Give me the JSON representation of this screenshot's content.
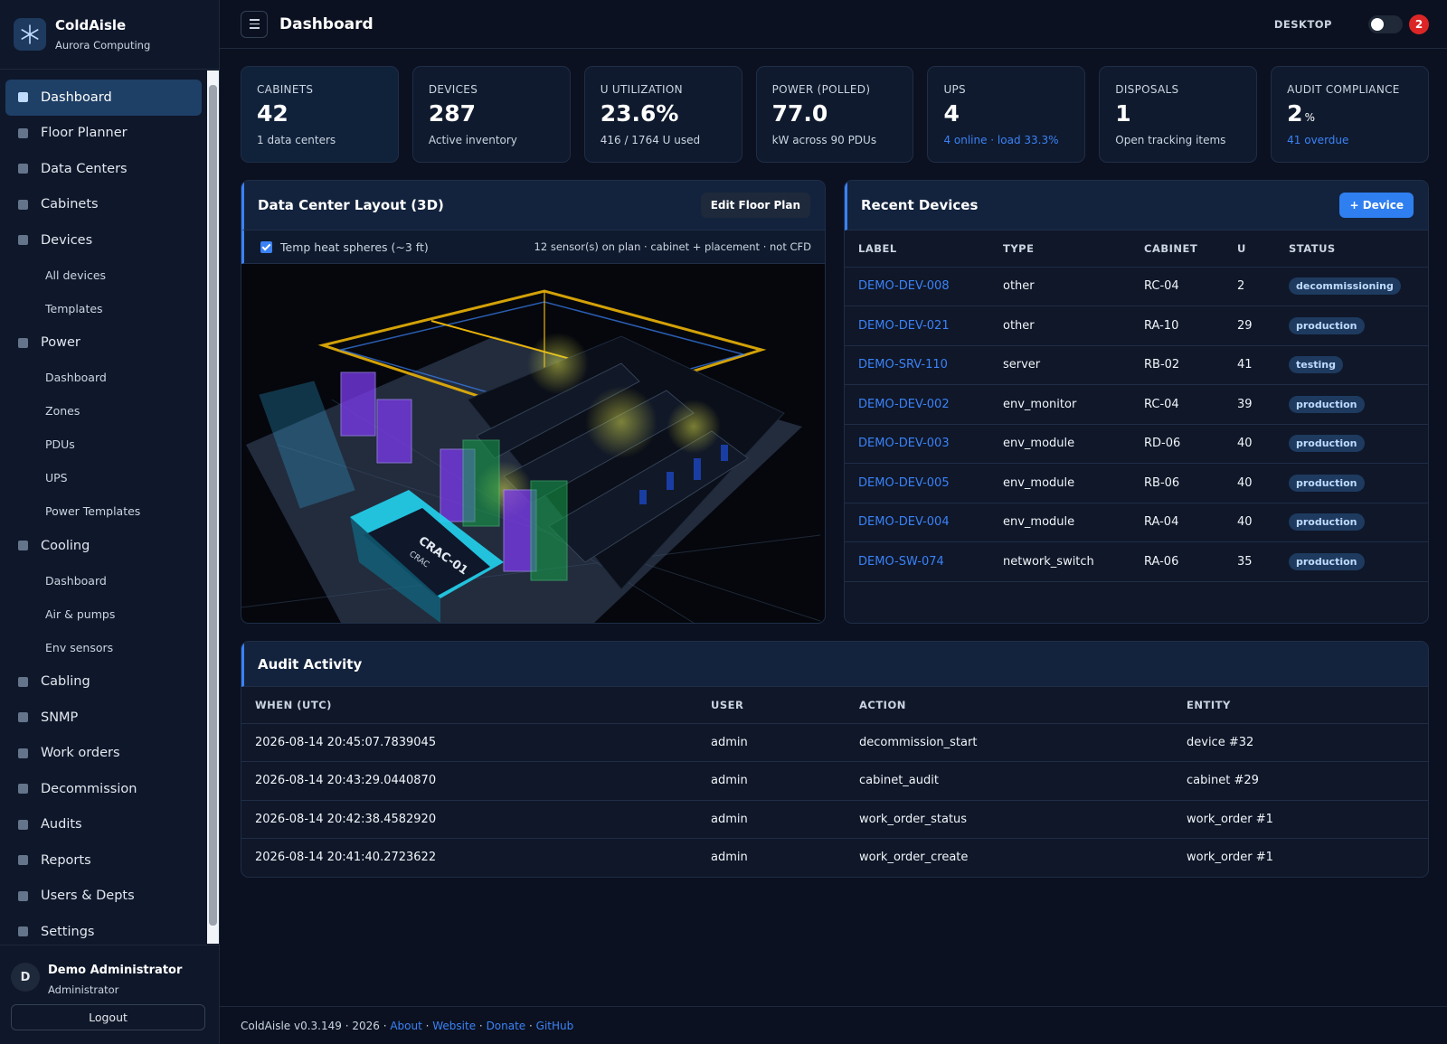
{
  "brand": {
    "name": "ColdAisle",
    "org": "Aurora Computing"
  },
  "nav": [
    {
      "label": "Dashboard",
      "active": true
    },
    {
      "label": "Floor Planner"
    },
    {
      "label": "Data Centers"
    },
    {
      "label": "Cabinets"
    },
    {
      "label": "Devices",
      "children": [
        "All devices",
        "Templates"
      ]
    },
    {
      "label": "Power",
      "children": [
        "Dashboard",
        "Zones",
        "PDUs",
        "UPS",
        "Power Templates"
      ]
    },
    {
      "label": "Cooling",
      "children": [
        "Dashboard",
        "Air & pumps",
        "Env sensors"
      ]
    },
    {
      "label": "Cabling"
    },
    {
      "label": "SNMP"
    },
    {
      "label": "Work orders"
    },
    {
      "label": "Decommission"
    },
    {
      "label": "Audits"
    },
    {
      "label": "Reports"
    },
    {
      "label": "Users & Depts"
    },
    {
      "label": "Settings"
    }
  ],
  "user": {
    "initial": "D",
    "name": "Demo Administrator",
    "role": "Administrator",
    "logout": "Logout"
  },
  "header": {
    "title": "Dashboard",
    "mode": "DESKTOP",
    "notifications": "2"
  },
  "stats": [
    {
      "label": "CABINETS",
      "value": "42",
      "sub": "1 data centers"
    },
    {
      "label": "DEVICES",
      "value": "287",
      "sub": "Active inventory"
    },
    {
      "label": "U UTILIZATION",
      "value": "23.6%",
      "sub": "416 / 1764 U used"
    },
    {
      "label": "POWER (POLLED)",
      "value": "77.0",
      "sub": "kW across 90 PDUs"
    },
    {
      "label": "UPS",
      "value": "4",
      "sub": "4 online · load 33.3%",
      "sub_link": true
    },
    {
      "label": "DISPOSALS",
      "value": "1",
      "sub": "Open tracking items"
    },
    {
      "label": "AUDIT COMPLIANCE",
      "value": "2",
      "unit": "%",
      "sub": "41 overdue",
      "sub_link": true
    }
  ],
  "layout": {
    "title": "Data Center Layout (3D)",
    "button": "Edit Floor Plan",
    "toggle": "Temp heat spheres (~3 ft)",
    "note": "12 sensor(s) on plan · cabinet + placement · not CFD",
    "scene_labels": [
      "CRAC-01",
      "CRAC"
    ]
  },
  "recent": {
    "title": "Recent Devices",
    "button": "+ Device",
    "columns": [
      "LABEL",
      "TYPE",
      "CABINET",
      "U",
      "STATUS"
    ],
    "rows": [
      [
        "DEMO-DEV-008",
        "other",
        "RC-04",
        "2",
        "decommissioning"
      ],
      [
        "DEMO-DEV-021",
        "other",
        "RA-10",
        "29",
        "production"
      ],
      [
        "DEMO-SRV-110",
        "server",
        "RB-02",
        "41",
        "testing"
      ],
      [
        "DEMO-DEV-002",
        "env_monitor",
        "RC-04",
        "39",
        "production"
      ],
      [
        "DEMO-DEV-003",
        "env_module",
        "RD-06",
        "40",
        "production"
      ],
      [
        "DEMO-DEV-005",
        "env_module",
        "RB-06",
        "40",
        "production"
      ],
      [
        "DEMO-DEV-004",
        "env_module",
        "RA-04",
        "40",
        "production"
      ],
      [
        "DEMO-SW-074",
        "network_switch",
        "RA-06",
        "35",
        "production"
      ]
    ]
  },
  "audit": {
    "title": "Audit Activity",
    "columns": [
      "WHEN (UTC)",
      "USER",
      "ACTION",
      "ENTITY"
    ],
    "rows": [
      [
        "2026-08-14 20:45:07.7839045",
        "admin",
        "decommission_start",
        "device #32"
      ],
      [
        "2026-08-14 20:43:29.0440870",
        "admin",
        "cabinet_audit",
        "cabinet #29"
      ],
      [
        "2026-08-14 20:42:38.4582920",
        "admin",
        "work_order_status",
        "work_order #1"
      ],
      [
        "2026-08-14 20:41:40.2723622",
        "admin",
        "work_order_create",
        "work_order #1"
      ]
    ]
  },
  "footer": {
    "text": "ColdAisle v0.3.149 · 2026 · ",
    "separator": " · ",
    "links": [
      "About",
      "Website",
      "Donate",
      "GitHub"
    ]
  }
}
